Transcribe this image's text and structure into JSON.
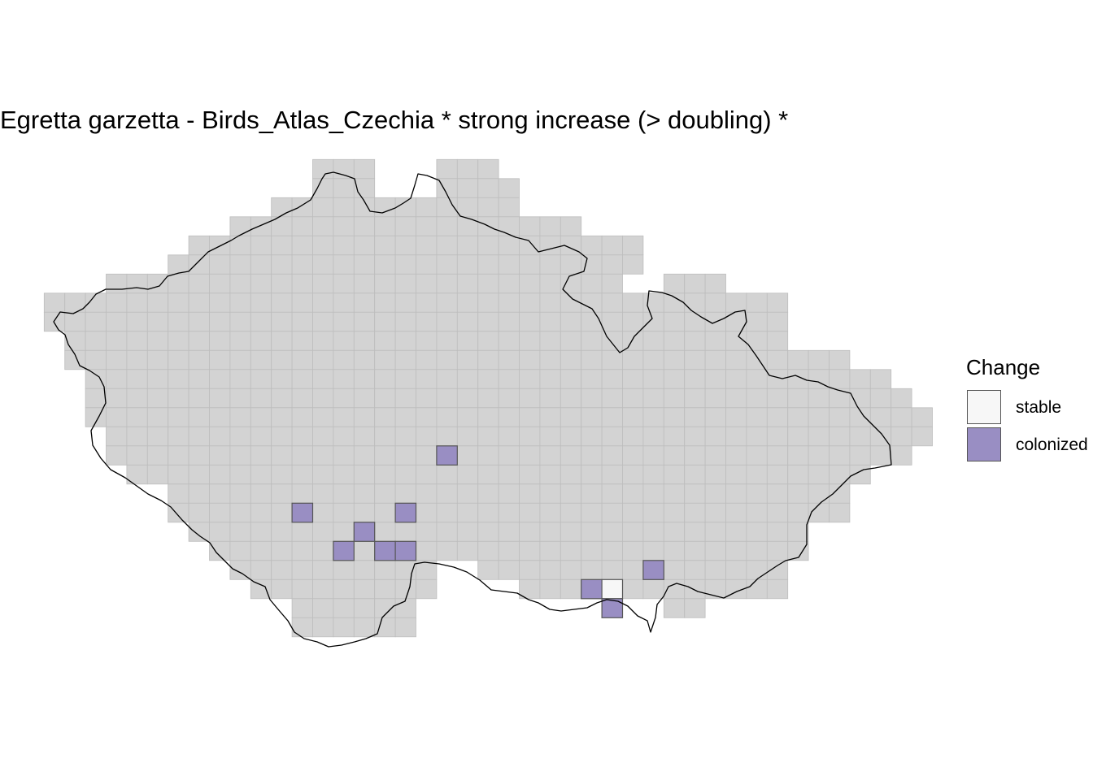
{
  "title": "Egretta garzetta - Birds_Atlas_Czechia * strong increase (> doubling) *",
  "colors": {
    "background_cell": "#d3d3d3",
    "cell_grid_line": "#bdbdbd",
    "stable": "#f7f7f7",
    "colonized": "#998ec3",
    "highlight_border": "#555555",
    "border_line": "#000000"
  },
  "legend": {
    "title": "Change",
    "items": [
      {
        "label": "stable",
        "color": "#f7f7f7"
      },
      {
        "label": "colonized",
        "color": "#998ec3"
      }
    ]
  },
  "grid": {
    "rows": [
      {
        "row": 0,
        "spans": [
          [
            13,
            15
          ],
          [
            19,
            21
          ]
        ]
      },
      {
        "row": 1,
        "spans": [
          [
            13,
            15
          ],
          [
            19,
            22
          ]
        ]
      },
      {
        "row": 2,
        "spans": [
          [
            11,
            22
          ]
        ]
      },
      {
        "row": 3,
        "spans": [
          [
            9,
            25
          ]
        ]
      },
      {
        "row": 4,
        "spans": [
          [
            7,
            28
          ]
        ]
      },
      {
        "row": 5,
        "spans": [
          [
            6,
            28
          ]
        ]
      },
      {
        "row": 6,
        "spans": [
          [
            3,
            27
          ],
          [
            30,
            32
          ]
        ]
      },
      {
        "row": 7,
        "spans": [
          [
            0,
            35
          ]
        ]
      },
      {
        "row": 8,
        "spans": [
          [
            0,
            35
          ]
        ]
      },
      {
        "row": 9,
        "spans": [
          [
            1,
            35
          ]
        ]
      },
      {
        "row": 10,
        "spans": [
          [
            1,
            38
          ]
        ]
      },
      {
        "row": 11,
        "spans": [
          [
            2,
            40
          ]
        ]
      },
      {
        "row": 12,
        "spans": [
          [
            2,
            41
          ]
        ]
      },
      {
        "row": 13,
        "spans": [
          [
            2,
            42
          ]
        ]
      },
      {
        "row": 14,
        "spans": [
          [
            3,
            42
          ]
        ]
      },
      {
        "row": 15,
        "spans": [
          [
            3,
            41
          ]
        ]
      },
      {
        "row": 16,
        "spans": [
          [
            4,
            39
          ]
        ]
      },
      {
        "row": 17,
        "spans": [
          [
            6,
            38
          ]
        ]
      },
      {
        "row": 18,
        "spans": [
          [
            6,
            38
          ]
        ]
      },
      {
        "row": 19,
        "spans": [
          [
            7,
            36
          ]
        ]
      },
      {
        "row": 20,
        "spans": [
          [
            8,
            36
          ]
        ]
      },
      {
        "row": 21,
        "spans": [
          [
            9,
            18
          ],
          [
            21,
            35
          ]
        ]
      },
      {
        "row": 22,
        "spans": [
          [
            10,
            18
          ],
          [
            23,
            35
          ]
        ]
      },
      {
        "row": 23,
        "spans": [
          [
            12,
            17
          ],
          [
            30,
            31
          ]
        ]
      },
      {
        "row": 24,
        "spans": [
          [
            12,
            17
          ]
        ]
      }
    ],
    "cells": [
      {
        "row": 15,
        "col": 19,
        "status": "colonized"
      },
      {
        "row": 18,
        "col": 12,
        "status": "colonized"
      },
      {
        "row": 18,
        "col": 17,
        "status": "colonized"
      },
      {
        "row": 19,
        "col": 15,
        "status": "colonized"
      },
      {
        "row": 20,
        "col": 14,
        "status": "colonized"
      },
      {
        "row": 20,
        "col": 16,
        "status": "colonized"
      },
      {
        "row": 20,
        "col": 17,
        "status": "colonized"
      },
      {
        "row": 21,
        "col": 29,
        "status": "colonized"
      },
      {
        "row": 22,
        "col": 26,
        "status": "colonized"
      },
      {
        "row": 22,
        "col": 27,
        "status": "stable"
      },
      {
        "row": 23,
        "col": 27,
        "status": "colonized"
      }
    ]
  }
}
